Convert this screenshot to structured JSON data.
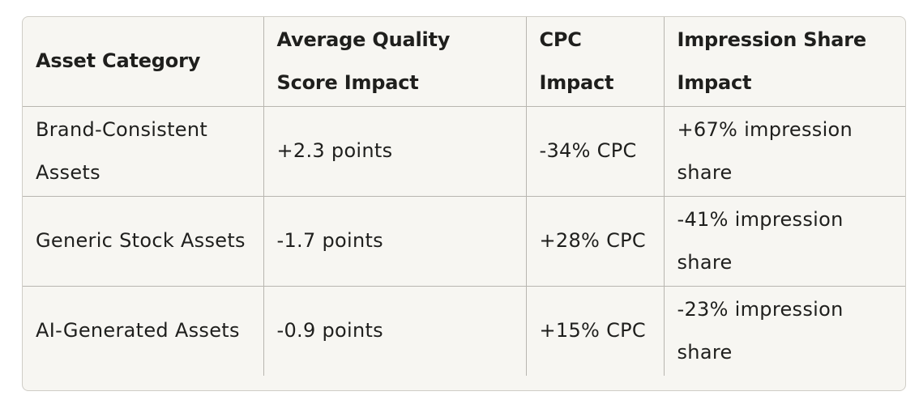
{
  "table": {
    "headers": [
      "Asset Category",
      "Average Quality Score Impact",
      "CPC Impact",
      "Impression Share Impact"
    ],
    "rows": [
      {
        "category": "Brand-Consistent Assets",
        "quality_score_impact": "+2.3 points",
        "cpc_impact": "-34% CPC",
        "impression_share_impact": "+67% impression share"
      },
      {
        "category": "Generic Stock Assets",
        "quality_score_impact": "-1.7 points",
        "cpc_impact": "+28% CPC",
        "impression_share_impact": "-41% impression share"
      },
      {
        "category": "AI-Generated Assets",
        "quality_score_impact": "-0.9 points",
        "cpc_impact": "+15% CPC",
        "impression_share_impact": "-23% impression share"
      }
    ]
  }
}
